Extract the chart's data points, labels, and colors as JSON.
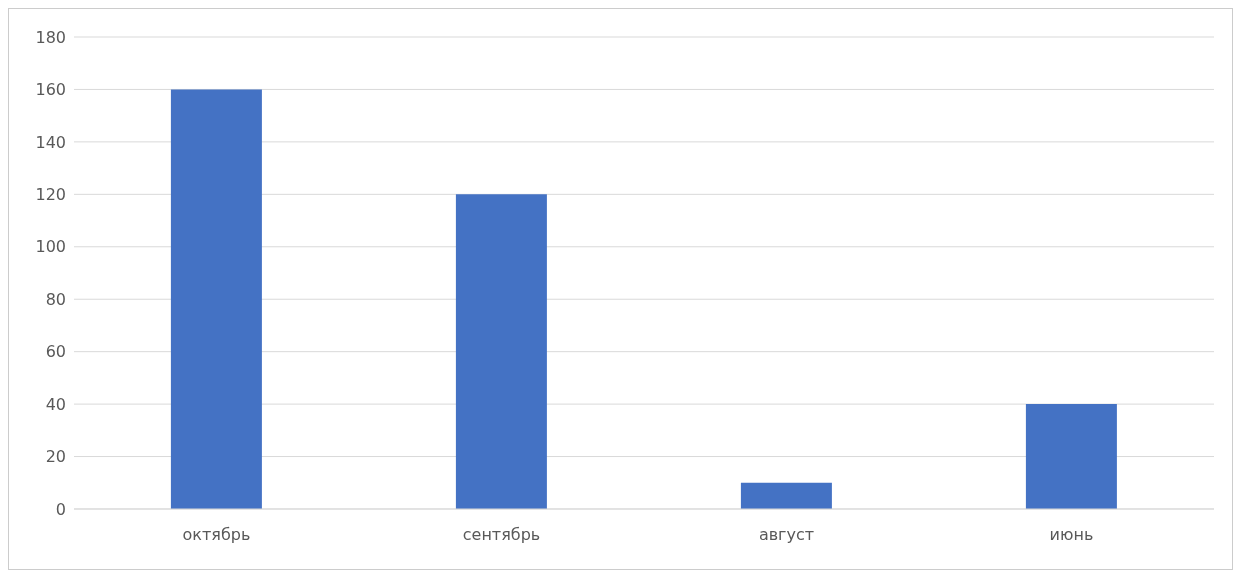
{
  "chart_data": {
    "type": "bar",
    "categories": [
      "октябрь",
      "сентябрь",
      "август",
      "июнь"
    ],
    "values": [
      160,
      120,
      10,
      40
    ],
    "color": "#4472c4",
    "ylim": [
      0,
      180
    ],
    "yticks": [
      0,
      20,
      40,
      60,
      80,
      100,
      120,
      140,
      160,
      180
    ],
    "grid": "y"
  }
}
